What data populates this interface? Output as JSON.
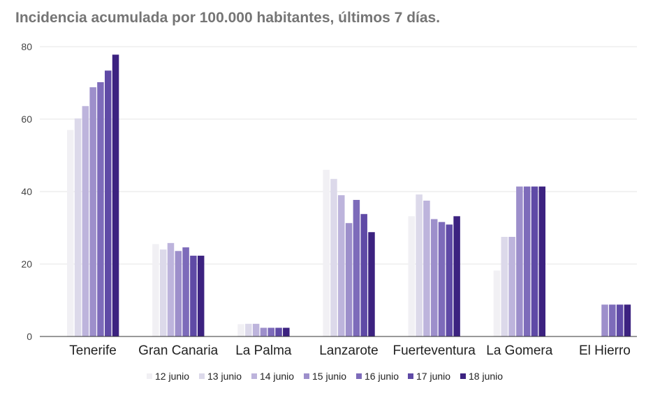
{
  "chart_data": {
    "type": "bar",
    "title": "Incidencia acumulada por 100.000 habitantes, últimos 7 días.",
    "xlabel": "",
    "ylabel": "",
    "ylim": [
      0,
      80
    ],
    "yticks": [
      0,
      20,
      40,
      60,
      80
    ],
    "grid": true,
    "legend_position": "bottom",
    "categories": [
      "Tenerife",
      "Gran Canaria",
      "La Palma",
      "Lanzarote",
      "Fuerteventura",
      "La Gomera",
      "El Hierro"
    ],
    "series": [
      {
        "name": "12 junio",
        "color": "#f1f0f4",
        "values": [
          57.0,
          25.5,
          3.4,
          46.0,
          33.2,
          18.2,
          0
        ]
      },
      {
        "name": "13 junio",
        "color": "#dcd9ea",
        "values": [
          60.2,
          24.0,
          3.5,
          43.5,
          39.2,
          27.5,
          0
        ]
      },
      {
        "name": "14 junio",
        "color": "#bdb4dc",
        "values": [
          63.6,
          25.8,
          3.5,
          39.0,
          37.5,
          27.5,
          0
        ]
      },
      {
        "name": "15 junio",
        "color": "#9d8fcb",
        "values": [
          68.8,
          23.6,
          2.4,
          31.3,
          32.4,
          41.4,
          8.8
        ]
      },
      {
        "name": "16 junio",
        "color": "#7d6bba",
        "values": [
          70.2,
          24.6,
          2.4,
          37.7,
          31.6,
          41.4,
          8.8
        ]
      },
      {
        "name": "17 junio",
        "color": "#5f4aa6",
        "values": [
          73.4,
          22.3,
          2.4,
          33.8,
          30.9,
          41.4,
          8.8
        ]
      },
      {
        "name": "18 junio",
        "color": "#3c2280",
        "values": [
          77.8,
          22.3,
          2.4,
          28.8,
          33.2,
          41.4,
          8.8
        ]
      }
    ]
  }
}
